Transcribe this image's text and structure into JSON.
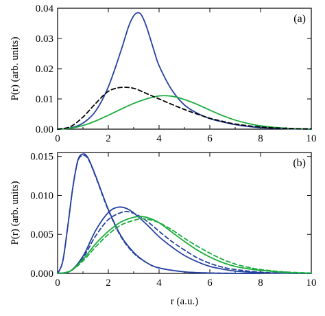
{
  "colors": {
    "blue": "#2340a0",
    "green": "#1aab3c",
    "black": "#000000"
  },
  "chart_data": [
    {
      "type": "line",
      "panel_label": "(a)",
      "xlabel": "",
      "ylabel": "P(r) (arb. units)",
      "xlim": [
        0,
        10
      ],
      "ylim": [
        0,
        0.04
      ],
      "xticks": [
        "0",
        "2",
        "4",
        "6",
        "8",
        "10"
      ],
      "yticks": [
        "0.00",
        "0.01",
        "0.02",
        "0.03",
        "0.04"
      ],
      "grid": false,
      "series": [
        {
          "color": "blue",
          "dash": "solid",
          "x": [
            0,
            0.5,
            1,
            1.5,
            2,
            2.5,
            2.8,
            3.0,
            3.15,
            3.3,
            3.5,
            3.8,
            4.0,
            4.5,
            5.0,
            5.5,
            6,
            6.5,
            7,
            7.5,
            8,
            9,
            10
          ],
          "y": [
            0,
            0.0004,
            0.002,
            0.006,
            0.014,
            0.026,
            0.034,
            0.0375,
            0.0385,
            0.0378,
            0.034,
            0.026,
            0.021,
            0.013,
            0.008,
            0.0053,
            0.0035,
            0.0024,
            0.0015,
            0.0009,
            0.0005,
            0.00015,
            3e-05
          ]
        },
        {
          "color": "green",
          "dash": "solid",
          "x": [
            0,
            0.5,
            1,
            1.5,
            2,
            2.5,
            3,
            3.5,
            4,
            4.5,
            5,
            5.5,
            6,
            6.5,
            7,
            7.5,
            8,
            9,
            10
          ],
          "y": [
            0,
            0.0003,
            0.0012,
            0.0027,
            0.0046,
            0.0066,
            0.0085,
            0.01,
            0.011,
            0.0109,
            0.0098,
            0.0082,
            0.0063,
            0.0045,
            0.003,
            0.0019,
            0.0011,
            0.0003,
            5e-05
          ]
        },
        {
          "color": "black",
          "dash": "dashed",
          "x": [
            0,
            0.5,
            1,
            1.5,
            2,
            2.5,
            3,
            3.5,
            4,
            4.5,
            5,
            5.5,
            6,
            6.5,
            7,
            8,
            9,
            10
          ],
          "y": [
            0,
            0.0008,
            0.004,
            0.0085,
            0.0125,
            0.0138,
            0.0135,
            0.0118,
            0.01,
            0.0082,
            0.0065,
            0.005,
            0.0036,
            0.0026,
            0.0017,
            0.0007,
            0.00025,
            5e-05
          ]
        }
      ]
    },
    {
      "type": "line",
      "panel_label": "(b)",
      "xlabel": "r (a.u.)",
      "ylabel": "P(r) (arb. units)",
      "xlim": [
        0,
        10
      ],
      "ylim": [
        0,
        0.0155
      ],
      "xticks": [
        "0",
        "2",
        "4",
        "6",
        "8",
        "10"
      ],
      "yticks": [
        "0.000",
        "0.005",
        "0.010",
        "0.015"
      ],
      "grid": false,
      "series": [
        {
          "color": "blue",
          "dash": "solid",
          "x": [
            0,
            0.2,
            0.4,
            0.6,
            0.8,
            1.0,
            1.2,
            1.5,
            2,
            2.5,
            3,
            3.5,
            4,
            5,
            6,
            7,
            8
          ],
          "y": [
            0,
            0.0015,
            0.006,
            0.011,
            0.0145,
            0.0153,
            0.0148,
            0.0125,
            0.0082,
            0.0048,
            0.0027,
            0.0014,
            0.0007,
            0.0002,
            5e-05,
            1e-05,
            0
          ]
        },
        {
          "color": "blue",
          "dash": "dashed",
          "x": [
            0,
            0.2,
            0.4,
            0.6,
            0.8,
            1.0,
            1.2,
            1.5,
            2,
            2.5,
            3,
            3.5,
            4,
            5,
            6,
            7,
            8
          ],
          "y": [
            0,
            0.0015,
            0.006,
            0.011,
            0.0144,
            0.0151,
            0.0147,
            0.0124,
            0.0081,
            0.0047,
            0.0026,
            0.0014,
            0.0007,
            0.0002,
            5e-05,
            1e-05,
            0
          ]
        },
        {
          "color": "blue",
          "dash": "solid",
          "x": [
            0,
            0.5,
            1,
            1.5,
            2,
            2.4,
            2.8,
            3.2,
            3.6,
            4,
            4.5,
            5,
            5.5,
            6,
            6.5,
            7,
            8,
            9,
            10
          ],
          "y": [
            0,
            0.0003,
            0.0022,
            0.0055,
            0.0078,
            0.0085,
            0.0082,
            0.0072,
            0.006,
            0.0047,
            0.0034,
            0.0023,
            0.0015,
            0.0009,
            0.00055,
            0.0003,
            0.0001,
            3e-05,
            0
          ]
        },
        {
          "color": "blue",
          "dash": "dashed",
          "x": [
            0,
            0.5,
            1,
            1.5,
            2,
            2.5,
            2.8,
            3.2,
            3.6,
            4,
            4.5,
            5,
            5.5,
            6,
            6.5,
            7,
            8,
            9,
            10
          ],
          "y": [
            0,
            0.0003,
            0.002,
            0.0048,
            0.0069,
            0.0078,
            0.0079,
            0.0074,
            0.0065,
            0.0054,
            0.0041,
            0.003,
            0.002,
            0.0013,
            0.0008,
            0.0005,
            0.00015,
            4e-05,
            0
          ]
        },
        {
          "color": "green",
          "dash": "solid",
          "x": [
            0,
            0.5,
            1,
            1.5,
            2,
            2.5,
            3,
            3.3,
            3.6,
            4,
            4.5,
            5,
            5.5,
            6,
            6.5,
            7,
            7.5,
            8,
            9,
            10
          ],
          "y": [
            0,
            0.0003,
            0.0018,
            0.0038,
            0.0054,
            0.0066,
            0.0072,
            0.0073,
            0.0071,
            0.0065,
            0.0053,
            0.0041,
            0.003,
            0.0021,
            0.0014,
            0.0009,
            0.0006,
            0.0004,
            0.00012,
            3e-05
          ]
        },
        {
          "color": "green",
          "dash": "dashed",
          "x": [
            0,
            0.5,
            1,
            1.5,
            2,
            2.5,
            3,
            3.3,
            3.6,
            4,
            4.5,
            5,
            5.5,
            6,
            6.5,
            7,
            7.5,
            8,
            9,
            10
          ],
          "y": [
            0,
            0.0003,
            0.0016,
            0.0034,
            0.005,
            0.0062,
            0.0068,
            0.007,
            0.0069,
            0.0065,
            0.0056,
            0.0045,
            0.0035,
            0.0026,
            0.0018,
            0.0012,
            0.0008,
            0.0005,
            0.00018,
            5e-05
          ]
        }
      ]
    }
  ]
}
